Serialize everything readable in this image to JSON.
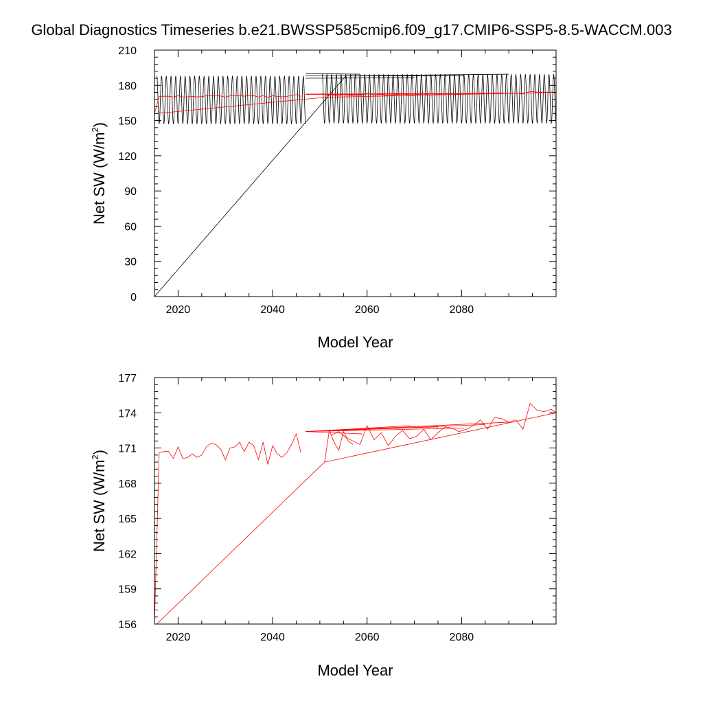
{
  "title": "Global Diagnostics Timeseries b.e21.BWSSP585cmip6.f09_g17.CMIP6-SSP5-8.5-WACCM.003",
  "colors": {
    "monthly": "#000000",
    "annual": "#ff0000",
    "axis": "#000000"
  },
  "chart_data": [
    {
      "type": "line",
      "xlabel": "Model Year",
      "ylabel": "Net SW (W/m",
      "ylabel_superscript": "2",
      "ylabel_close": ")",
      "xlim": [
        2015,
        2100
      ],
      "ylim": [
        0,
        210
      ],
      "x_ticks": [
        2020,
        2040,
        2060,
        2080
      ],
      "y_ticks": [
        0,
        30,
        60,
        90,
        120,
        150,
        180,
        210
      ],
      "series": [
        {
          "color": "#000000",
          "kind": "monthly",
          "segments": [
            {
              "x_start": 2015.5,
              "x_end": 2047.0,
              "mean": 167.5,
              "amplitude": 20.5
            },
            {
              "x_start": 2050.5,
              "x_end": 2100.0,
              "mean": 168.5,
              "amplitude": 21.0
            }
          ],
          "connectors": [
            [
              [
                2015.0,
                0
              ],
              [
                2055.5,
                188
              ]
            ],
            [
              [
                2047.0,
                190
              ],
              [
                2058.5,
                189.5
              ]
            ],
            [
              [
                2047.0,
                188
              ],
              [
                2080.5,
                188
              ]
            ],
            [
              [
                2047.0,
                186
              ],
              [
                2070.0,
                186.5
              ]
            ],
            [
              [
                2055.5,
                188
              ],
              [
                2090.0,
                189.5
              ]
            ]
          ]
        },
        {
          "color": "#ff0000",
          "kind": "annual",
          "x": [
            2015.0,
            2016.0,
            2017.0,
            2018.0,
            2019.0,
            2020.0,
            2021.0,
            2022.0,
            2023.0,
            2024.0,
            2025.0,
            2026.0,
            2027.0,
            2028.0,
            2029.0,
            2030.0,
            2031.0,
            2032.0,
            2033.0,
            2034.0,
            2035.0,
            2036.0,
            2037.0,
            2038.0,
            2039.0,
            2040.0,
            2041.0,
            2042.0,
            2043.0,
            2044.0,
            2045.0,
            2046.0
          ],
          "y": [
            156.0,
            170.6,
            170.7,
            170.7,
            170.1,
            171.1,
            170.1,
            170.2,
            170.5,
            170.2,
            170.4,
            171.1,
            171.4,
            171.3,
            170.9,
            170.0,
            171.0,
            171.1,
            171.5,
            170.7,
            171.5,
            171.2,
            170.0,
            171.5,
            169.6,
            171.2,
            170.5,
            170.2,
            170.6,
            171.3,
            172.2,
            170.6
          ]
        },
        {
          "color": "#ff0000",
          "kind": "annual",
          "x": [
            2051.0,
            2052.0,
            2053.0,
            2054.0,
            2055.0,
            2056.0,
            2057.0
          ],
          "y": [
            169.8,
            172.5,
            171.5,
            170.8,
            172.4,
            171.6,
            171.3
          ]
        },
        {
          "color": "#ff0000",
          "kind": "annual",
          "x": [
            2052.5,
            2054.0,
            2055.5,
            2057.0,
            2058.5,
            2060.0,
            2061.5,
            2063.0,
            2064.5,
            2066.0,
            2067.5,
            2069.0,
            2070.5,
            2072.0,
            2073.5,
            2075.0,
            2076.5,
            2078.0,
            2079.5,
            2081.0,
            2082.5,
            2084.0,
            2085.5,
            2087.0,
            2088.5,
            2090.0,
            2091.5,
            2093.0,
            2094.5,
            2096.0,
            2097.5,
            2099.0,
            2100.0
          ],
          "y": [
            172.1,
            172.4,
            171.9,
            171.6,
            171.3,
            172.9,
            171.7,
            172.3,
            171.2,
            172.0,
            172.5,
            171.8,
            172.0,
            172.6,
            171.7,
            172.3,
            172.8,
            172.7,
            172.4,
            172.6,
            172.9,
            173.4,
            172.6,
            173.6,
            173.5,
            173.2,
            173.4,
            172.6,
            174.8,
            174.2,
            174.1,
            174.3,
            174.0
          ]
        },
        {
          "color": "#ff0000",
          "kind": "connector",
          "lines": [
            [
              [
                2015.5,
                156.0
              ],
              [
                2051.0,
                169.8
              ]
            ],
            [
              [
                2051.0,
                169.8
              ],
              [
                2100.0,
                174.0
              ]
            ],
            [
              [
                2047.0,
                172.4
              ],
              [
                2090.0,
                173.2
              ]
            ],
            [
              [
                2047.0,
                172.4
              ],
              [
                2085.0,
                173.0
              ]
            ],
            [
              [
                2047.0,
                172.4
              ],
              [
                2080.5,
                172.7
              ]
            ],
            [
              [
                2047.0,
                172.4
              ],
              [
                2075.0,
                172.8
              ]
            ],
            [
              [
                2047.0,
                172.4
              ],
              [
                2069.0,
                172.9
              ]
            ],
            [
              [
                2047.0,
                172.4
              ],
              [
                2059.0,
                172.2
              ]
            ]
          ]
        }
      ]
    },
    {
      "type": "line",
      "xlabel": "Model Year",
      "ylabel": "Net SW (W/m",
      "ylabel_superscript": "2",
      "ylabel_close": ")",
      "xlim": [
        2015,
        2100
      ],
      "ylim": [
        156,
        177
      ],
      "x_ticks": [
        2020,
        2040,
        2060,
        2080
      ],
      "y_ticks": [
        156,
        159,
        162,
        165,
        168,
        171,
        174,
        177
      ],
      "series": [
        {
          "color": "#ff0000",
          "x": [
            2015.0,
            2016.0,
            2017.0,
            2018.0,
            2019.0,
            2020.0,
            2021.0,
            2022.0,
            2023.0,
            2024.0,
            2025.0,
            2026.0,
            2027.0,
            2028.0,
            2029.0,
            2030.0,
            2031.0,
            2032.0,
            2033.0,
            2034.0,
            2035.0,
            2036.0,
            2037.0,
            2038.0,
            2039.0,
            2040.0,
            2041.0,
            2042.0,
            2043.0,
            2044.0,
            2045.0,
            2046.0
          ],
          "y": [
            156.0,
            170.6,
            170.7,
            170.7,
            170.1,
            171.1,
            170.1,
            170.2,
            170.5,
            170.2,
            170.4,
            171.1,
            171.4,
            171.3,
            170.9,
            170.0,
            171.0,
            171.1,
            171.5,
            170.7,
            171.5,
            171.2,
            170.0,
            171.5,
            169.6,
            171.2,
            170.5,
            170.2,
            170.6,
            171.3,
            172.2,
            170.6
          ]
        },
        {
          "color": "#ff0000",
          "x": [
            2051.0,
            2052.0,
            2053.0,
            2054.0,
            2055.0,
            2056.0,
            2057.0
          ],
          "y": [
            169.8,
            172.5,
            171.5,
            170.8,
            172.4,
            171.6,
            171.3
          ]
        },
        {
          "color": "#ff0000",
          "x": [
            2052.5,
            2054.0,
            2055.5,
            2057.0,
            2058.5,
            2060.0,
            2061.5,
            2063.0,
            2064.5,
            2066.0,
            2067.5,
            2069.0,
            2070.5,
            2072.0,
            2073.5,
            2075.0,
            2076.5,
            2078.0,
            2079.5,
            2081.0,
            2082.5,
            2084.0,
            2085.5,
            2087.0,
            2088.5,
            2090.0,
            2091.5,
            2093.0,
            2094.5,
            2096.0,
            2097.5,
            2099.0,
            2100.0
          ],
          "y": [
            172.1,
            172.4,
            171.9,
            171.6,
            171.3,
            172.9,
            171.7,
            172.3,
            171.2,
            172.0,
            172.5,
            171.8,
            172.0,
            172.6,
            171.7,
            172.3,
            172.8,
            172.7,
            172.4,
            172.6,
            172.9,
            173.4,
            172.6,
            173.6,
            173.5,
            173.2,
            173.4,
            172.6,
            174.8,
            174.2,
            174.1,
            174.3,
            174.0
          ]
        },
        {
          "color": "#ff0000",
          "kind": "connector",
          "lines": [
            [
              [
                2015.5,
                156.0
              ],
              [
                2051.0,
                169.8
              ]
            ],
            [
              [
                2051.0,
                169.8
              ],
              [
                2100.0,
                174.0
              ]
            ],
            [
              [
                2047.0,
                172.4
              ],
              [
                2090.0,
                173.2
              ]
            ],
            [
              [
                2047.0,
                172.4
              ],
              [
                2085.0,
                173.0
              ]
            ],
            [
              [
                2047.0,
                172.4
              ],
              [
                2080.5,
                172.7
              ]
            ],
            [
              [
                2047.0,
                172.4
              ],
              [
                2075.0,
                172.8
              ]
            ],
            [
              [
                2047.0,
                172.4
              ],
              [
                2069.0,
                172.9
              ]
            ],
            [
              [
                2047.0,
                172.4
              ],
              [
                2059.0,
                172.2
              ]
            ]
          ]
        }
      ]
    }
  ]
}
